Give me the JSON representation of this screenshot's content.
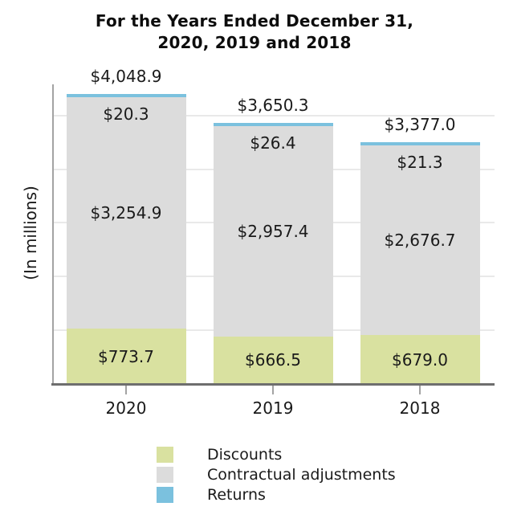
{
  "title": {
    "line1": "For the Years Ended December 31,",
    "line2": "2020, 2019 and 2018"
  },
  "y_axis_label": "(In millions)",
  "chart_data": {
    "type": "bar",
    "stacked": true,
    "title": "For the Years Ended December 31, 2020, 2019 and 2018",
    "ylabel": "(In millions)",
    "categories": [
      "2020",
      "2019",
      "2018"
    ],
    "series": [
      {
        "name": "Discounts",
        "color": "#d9e1a0",
        "values": [
          773.7,
          666.5,
          679.0
        ],
        "labels": [
          "$773.7",
          "$666.5",
          "$679.0"
        ]
      },
      {
        "name": "Contractual adjustments",
        "color": "#dcdcdc",
        "values": [
          3254.9,
          2957.4,
          2676.7
        ],
        "labels": [
          "$3,254.9",
          "$2,957.4",
          "$2,676.7"
        ]
      },
      {
        "name": "Returns",
        "color": "#7bc1de",
        "values": [
          20.3,
          26.4,
          21.3
        ],
        "labels": [
          "$20.3",
          "$26.4",
          "$21.3"
        ]
      }
    ],
    "totals": [
      4048.9,
      3650.3,
      3377.0
    ],
    "total_labels": [
      "$4,048.9",
      "$3,650.3",
      "$3,377.0"
    ],
    "ylim": [
      0,
      4185
    ],
    "gridline_values": [
      750,
      1500,
      2250,
      3000,
      3750
    ],
    "grid": true,
    "legend_position": "bottom-center"
  },
  "colors": {
    "discounts": "#d9e1a0",
    "contractual_adjustments": "#dcdcdc",
    "returns": "#7bc1de",
    "gridline": "#e9e9e9",
    "axis_line": "#a3a3a3",
    "baseline": "#6e6e6e",
    "text": "#1a1a1a"
  }
}
